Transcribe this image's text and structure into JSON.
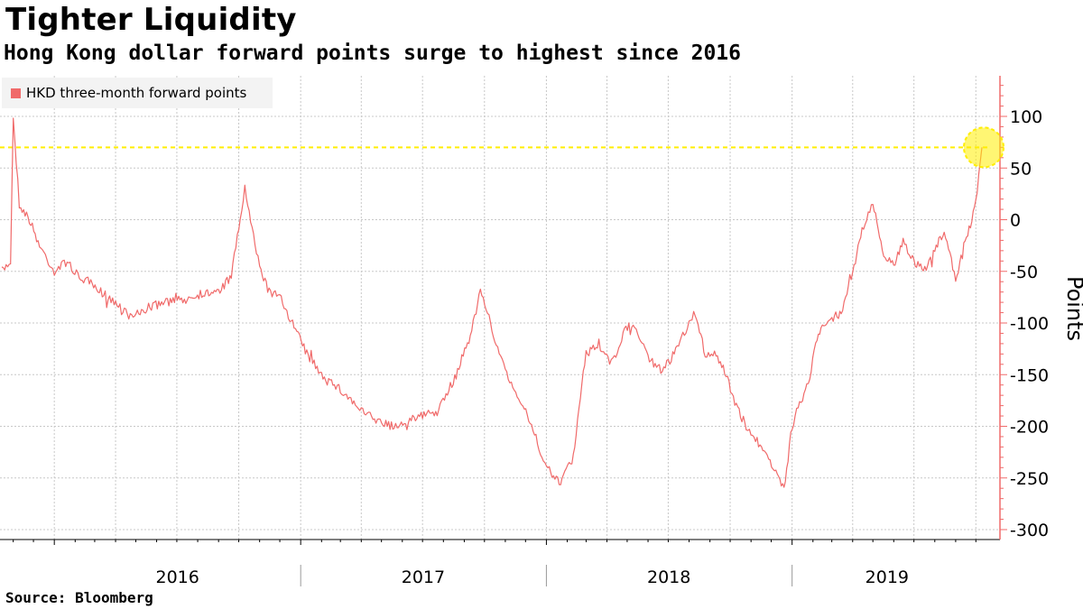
{
  "header": {
    "title": "Tighter Liquidity",
    "subtitle": "Hong Kong dollar forward points surge to highest since 2016"
  },
  "source": "Source: Bloomberg",
  "colors": {
    "series": "#f06a6a",
    "highlight": "#ffee00",
    "axis": "#f06a6a",
    "grid": "#c8c8c8"
  },
  "chart_data": {
    "type": "line",
    "title": "Tighter Liquidity",
    "subtitle": "Hong Kong dollar forward points surge to highest since 2016",
    "ylabel": "Points",
    "xlabel": "",
    "ylim": [
      -300,
      140
    ],
    "yticks": [
      100,
      50,
      0,
      -50,
      -100,
      -150,
      -200,
      -250,
      -300
    ],
    "x_range": [
      "2015-10-15",
      "2019-10-10"
    ],
    "x_tick_labels": [
      "2016",
      "2017",
      "2018",
      "2019"
    ],
    "grid": true,
    "legend_position": "top-left",
    "series": [
      {
        "name": "HKD three-month forward points",
        "x": [
          "2015-10-15",
          "2015-10-28",
          "2015-11-01",
          "2015-11-10",
          "2015-11-25",
          "2015-12-10",
          "2016-01-01",
          "2016-01-20",
          "2016-02-05",
          "2016-02-20",
          "2016-03-10",
          "2016-04-01",
          "2016-04-25",
          "2016-05-20",
          "2016-06-15",
          "2016-07-10",
          "2016-08-05",
          "2016-09-01",
          "2016-09-20",
          "2016-10-10",
          "2016-10-25",
          "2016-11-01",
          "2016-11-15",
          "2016-12-01",
          "2016-12-20",
          "2017-01-10",
          "2017-02-01",
          "2017-02-20",
          "2017-03-10",
          "2017-04-01",
          "2017-04-25",
          "2017-05-20",
          "2017-06-10",
          "2017-07-01",
          "2017-07-25",
          "2017-08-20",
          "2017-09-10",
          "2017-09-25",
          "2017-10-10",
          "2017-10-25",
          "2017-11-10",
          "2017-11-25",
          "2017-12-10",
          "2018-01-01",
          "2018-01-20",
          "2018-02-10",
          "2018-03-01",
          "2018-03-20",
          "2018-04-05",
          "2018-04-12",
          "2018-04-25",
          "2018-05-10",
          "2018-06-01",
          "2018-06-20",
          "2018-07-10",
          "2018-07-25",
          "2018-08-10",
          "2018-08-25",
          "2018-09-10",
          "2018-09-25",
          "2018-10-10",
          "2018-10-25",
          "2018-11-10",
          "2018-11-25",
          "2018-12-10",
          "2018-12-20",
          "2019-01-01",
          "2019-01-10",
          "2019-01-25",
          "2019-02-05",
          "2019-02-15",
          "2019-03-01",
          "2019-03-15",
          "2019-04-01",
          "2019-04-15",
          "2019-05-01",
          "2019-05-15",
          "2019-06-01",
          "2019-06-15",
          "2019-07-01",
          "2019-07-15",
          "2019-08-01",
          "2019-08-15",
          "2019-09-01",
          "2019-09-15",
          "2019-09-25",
          "2019-10-03",
          "2019-10-10"
        ],
        "values": [
          -50,
          -40,
          100,
          15,
          0,
          -25,
          -50,
          -40,
          -55,
          -60,
          -70,
          -80,
          -95,
          -85,
          -80,
          -78,
          -72,
          -70,
          -55,
          30,
          -25,
          -45,
          -70,
          -75,
          -100,
          -130,
          -150,
          -160,
          -170,
          -185,
          -195,
          -200,
          -195,
          -190,
          -185,
          -150,
          -110,
          -70,
          -100,
          -135,
          -160,
          -175,
          -200,
          -240,
          -255,
          -230,
          -130,
          -120,
          -140,
          -135,
          -110,
          -100,
          -135,
          -145,
          -130,
          -110,
          -90,
          -130,
          -130,
          -150,
          -180,
          -200,
          -215,
          -225,
          -250,
          -260,
          -200,
          -180,
          -160,
          -120,
          -105,
          -95,
          -90,
          -50,
          -10,
          15,
          -30,
          -45,
          -20,
          -40,
          -50,
          -30,
          -10,
          -60,
          -20,
          0,
          30,
          70
        ]
      }
    ],
    "annotations": [
      {
        "type": "horizontal-reference-line",
        "y": 70
      },
      {
        "type": "circle-highlight",
        "x": "2019-10-10",
        "y": 70
      }
    ]
  }
}
